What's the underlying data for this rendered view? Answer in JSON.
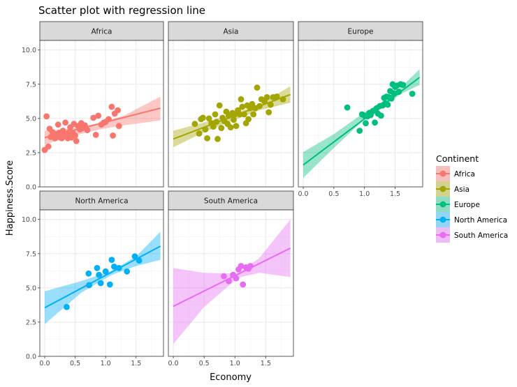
{
  "chart_data": {
    "type": "scatter",
    "title": "Scatter plot with regression line",
    "xlabel": "Economy",
    "ylabel": "Happiness.Score",
    "xlim": [
      -0.08,
      1.95
    ],
    "ylim": [
      0,
      10.7
    ],
    "x_ticks": [
      0.0,
      0.5,
      1.0,
      1.5
    ],
    "x_tick_labels": [
      "0.0",
      "0.5",
      "1.0",
      "1.5"
    ],
    "y_ticks": [
      0.0,
      2.5,
      5.0,
      7.5,
      10.0
    ],
    "y_tick_labels": [
      "0.0",
      "2.5",
      "5.0",
      "7.5",
      "10.0"
    ],
    "grid": true,
    "legend": {
      "title": "Continent",
      "position": "right",
      "entries": [
        "Africa",
        "Asia",
        "Europe",
        "North America",
        "South America"
      ]
    },
    "facets": [
      {
        "name": "Africa",
        "color": "#F8766D",
        "regression": {
          "x": [
            0.0,
            1.9
          ],
          "y": [
            3.6,
            5.75
          ]
        },
        "band": {
          "x": [
            0.0,
            0.4,
            0.9,
            1.3,
            1.9
          ],
          "lower": [
            3.1,
            3.65,
            4.2,
            4.5,
            4.85
          ],
          "upper": [
            4.1,
            4.25,
            4.65,
            5.2,
            6.6
          ]
        },
        "points": [
          {
            "x": 0.0,
            "y": 2.7
          },
          {
            "x": 0.03,
            "y": 5.15
          },
          {
            "x": 0.06,
            "y": 2.95
          },
          {
            "x": 0.08,
            "y": 4.25
          },
          {
            "x": 0.1,
            "y": 3.65
          },
          {
            "x": 0.13,
            "y": 4.0
          },
          {
            "x": 0.17,
            "y": 3.55
          },
          {
            "x": 0.2,
            "y": 3.85
          },
          {
            "x": 0.22,
            "y": 4.55
          },
          {
            "x": 0.24,
            "y": 3.95
          },
          {
            "x": 0.26,
            "y": 3.6
          },
          {
            "x": 0.28,
            "y": 3.55
          },
          {
            "x": 0.3,
            "y": 4.1
          },
          {
            "x": 0.32,
            "y": 3.7
          },
          {
            "x": 0.34,
            "y": 4.7
          },
          {
            "x": 0.36,
            "y": 3.8
          },
          {
            "x": 0.38,
            "y": 3.55
          },
          {
            "x": 0.4,
            "y": 4.0
          },
          {
            "x": 0.42,
            "y": 4.35
          },
          {
            "x": 0.44,
            "y": 3.6
          },
          {
            "x": 0.46,
            "y": 3.95
          },
          {
            "x": 0.48,
            "y": 4.6
          },
          {
            "x": 0.5,
            "y": 3.75
          },
          {
            "x": 0.52,
            "y": 3.35
          },
          {
            "x": 0.55,
            "y": 4.45
          },
          {
            "x": 0.58,
            "y": 4.2
          },
          {
            "x": 0.6,
            "y": 4.65
          },
          {
            "x": 0.62,
            "y": 4.3
          },
          {
            "x": 0.66,
            "y": 4.5
          },
          {
            "x": 0.7,
            "y": 4.15
          },
          {
            "x": 0.8,
            "y": 5.05
          },
          {
            "x": 0.84,
            "y": 3.8
          },
          {
            "x": 0.88,
            "y": 5.2
          },
          {
            "x": 0.93,
            "y": 4.55
          },
          {
            "x": 0.97,
            "y": 4.7
          },
          {
            "x": 1.0,
            "y": 4.75
          },
          {
            "x": 1.05,
            "y": 4.95
          },
          {
            "x": 1.1,
            "y": 5.85
          },
          {
            "x": 1.12,
            "y": 3.75
          },
          {
            "x": 1.15,
            "y": 5.35
          },
          {
            "x": 1.2,
            "y": 5.6
          },
          {
            "x": 1.22,
            "y": 4.45
          }
        ]
      },
      {
        "name": "Asia",
        "color": "#A3A500",
        "regression": {
          "x": [
            0.0,
            1.9
          ],
          "y": [
            3.5,
            6.75
          ]
        },
        "band": {
          "x": [
            0.0,
            0.5,
            1.0,
            1.4,
            1.9
          ],
          "lower": [
            2.9,
            4.0,
            4.9,
            5.6,
            6.15
          ],
          "upper": [
            4.1,
            4.7,
            5.35,
            6.05,
            7.35
          ]
        },
        "points": [
          {
            "x": 0.35,
            "y": 4.6
          },
          {
            "x": 0.42,
            "y": 3.9
          },
          {
            "x": 0.45,
            "y": 4.95
          },
          {
            "x": 0.48,
            "y": 5.05
          },
          {
            "x": 0.52,
            "y": 4.2
          },
          {
            "x": 0.55,
            "y": 3.55
          },
          {
            "x": 0.58,
            "y": 5.0
          },
          {
            "x": 0.62,
            "y": 4.65
          },
          {
            "x": 0.65,
            "y": 4.4
          },
          {
            "x": 0.68,
            "y": 5.3
          },
          {
            "x": 0.7,
            "y": 4.75
          },
          {
            "x": 0.72,
            "y": 3.5
          },
          {
            "x": 0.75,
            "y": 5.95
          },
          {
            "x": 0.78,
            "y": 4.3
          },
          {
            "x": 0.8,
            "y": 5.05
          },
          {
            "x": 0.83,
            "y": 4.8
          },
          {
            "x": 0.86,
            "y": 5.5
          },
          {
            "x": 0.88,
            "y": 4.6
          },
          {
            "x": 0.9,
            "y": 5.2
          },
          {
            "x": 0.93,
            "y": 4.35
          },
          {
            "x": 0.96,
            "y": 5.4
          },
          {
            "x": 0.98,
            "y": 4.9
          },
          {
            "x": 1.0,
            "y": 5.3
          },
          {
            "x": 1.02,
            "y": 4.45
          },
          {
            "x": 1.05,
            "y": 5.6
          },
          {
            "x": 1.08,
            "y": 5.3
          },
          {
            "x": 1.1,
            "y": 6.4
          },
          {
            "x": 1.12,
            "y": 5.85
          },
          {
            "x": 1.15,
            "y": 5.3
          },
          {
            "x": 1.18,
            "y": 4.65
          },
          {
            "x": 1.2,
            "y": 5.95
          },
          {
            "x": 1.22,
            "y": 4.95
          },
          {
            "x": 1.25,
            "y": 5.75
          },
          {
            "x": 1.28,
            "y": 6.05
          },
          {
            "x": 1.3,
            "y": 5.3
          },
          {
            "x": 1.33,
            "y": 5.75
          },
          {
            "x": 1.36,
            "y": 7.25
          },
          {
            "x": 1.4,
            "y": 5.9
          },
          {
            "x": 1.43,
            "y": 6.4
          },
          {
            "x": 1.48,
            "y": 6.25
          },
          {
            "x": 1.52,
            "y": 6.55
          },
          {
            "x": 1.55,
            "y": 5.45
          },
          {
            "x": 1.58,
            "y": 6.0
          },
          {
            "x": 1.62,
            "y": 6.55
          },
          {
            "x": 1.68,
            "y": 6.6
          },
          {
            "x": 1.78,
            "y": 6.4
          }
        ]
      },
      {
        "name": "Europe",
        "color": "#00BF7D",
        "regression": {
          "x": [
            0.0,
            1.9
          ],
          "y": [
            1.6,
            8.0
          ]
        },
        "band": {
          "x": [
            0.0,
            0.5,
            1.0,
            1.3,
            1.6,
            1.9
          ],
          "lower": [
            0.65,
            2.85,
            4.95,
            5.85,
            6.8,
            7.45
          ],
          "upper": [
            2.55,
            3.85,
            5.45,
            6.25,
            7.3,
            8.6
          ]
        },
        "points": [
          {
            "x": 0.72,
            "y": 5.8
          },
          {
            "x": 0.92,
            "y": 4.1
          },
          {
            "x": 0.96,
            "y": 5.3
          },
          {
            "x": 1.0,
            "y": 5.2
          },
          {
            "x": 1.02,
            "y": 4.65
          },
          {
            "x": 1.05,
            "y": 5.15
          },
          {
            "x": 1.08,
            "y": 5.4
          },
          {
            "x": 1.1,
            "y": 5.25
          },
          {
            "x": 1.14,
            "y": 5.55
          },
          {
            "x": 1.17,
            "y": 4.7
          },
          {
            "x": 1.2,
            "y": 5.75
          },
          {
            "x": 1.22,
            "y": 5.35
          },
          {
            "x": 1.25,
            "y": 5.9
          },
          {
            "x": 1.27,
            "y": 5.2
          },
          {
            "x": 1.3,
            "y": 5.95
          },
          {
            "x": 1.32,
            "y": 6.5
          },
          {
            "x": 1.34,
            "y": 6.1
          },
          {
            "x": 1.36,
            "y": 6.6
          },
          {
            "x": 1.38,
            "y": 6.0
          },
          {
            "x": 1.4,
            "y": 6.55
          },
          {
            "x": 1.42,
            "y": 7.0
          },
          {
            "x": 1.44,
            "y": 6.45
          },
          {
            "x": 1.46,
            "y": 7.5
          },
          {
            "x": 1.48,
            "y": 6.85
          },
          {
            "x": 1.5,
            "y": 7.3
          },
          {
            "x": 1.53,
            "y": 7.4
          },
          {
            "x": 1.56,
            "y": 6.95
          },
          {
            "x": 1.59,
            "y": 7.5
          },
          {
            "x": 1.63,
            "y": 7.45
          },
          {
            "x": 1.78,
            "y": 6.8
          }
        ]
      },
      {
        "name": "North America",
        "color": "#00B0F6",
        "regression": {
          "x": [
            0.0,
            1.9
          ],
          "y": [
            3.55,
            8.05
          ]
        },
        "band": {
          "x": [
            0.0,
            0.6,
            1.1,
            1.5,
            1.9
          ],
          "lower": [
            2.35,
            4.65,
            5.95,
            6.6,
            7.05
          ],
          "upper": [
            4.75,
            5.5,
            6.25,
            7.3,
            9.1
          ]
        },
        "points": [
          {
            "x": 0.36,
            "y": 3.6
          },
          {
            "x": 0.72,
            "y": 6.05
          },
          {
            "x": 0.73,
            "y": 5.2
          },
          {
            "x": 0.86,
            "y": 6.45
          },
          {
            "x": 0.89,
            "y": 5.95
          },
          {
            "x": 0.92,
            "y": 5.35
          },
          {
            "x": 1.0,
            "y": 6.2
          },
          {
            "x": 1.07,
            "y": 5.25
          },
          {
            "x": 1.1,
            "y": 7.05
          },
          {
            "x": 1.14,
            "y": 6.55
          },
          {
            "x": 1.22,
            "y": 6.45
          },
          {
            "x": 1.35,
            "y": 6.2
          },
          {
            "x": 1.48,
            "y": 7.3
          },
          {
            "x": 1.55,
            "y": 7.0
          }
        ]
      },
      {
        "name": "South America",
        "color": "#E76BF3",
        "regression": {
          "x": [
            0.0,
            1.9
          ],
          "y": [
            3.65,
            7.9
          ]
        },
        "band": {
          "x": [
            0.0,
            0.5,
            1.0,
            1.1,
            1.4,
            1.9
          ],
          "lower": [
            0.9,
            3.6,
            5.55,
            5.8,
            6.1,
            5.8
          ],
          "upper": [
            6.45,
            6.1,
            6.05,
            6.2,
            7.2,
            10.0
          ]
        },
        "points": [
          {
            "x": 0.82,
            "y": 5.85
          },
          {
            "x": 0.9,
            "y": 5.5
          },
          {
            "x": 0.97,
            "y": 5.95
          },
          {
            "x": 1.02,
            "y": 5.7
          },
          {
            "x": 1.06,
            "y": 6.35
          },
          {
            "x": 1.1,
            "y": 6.6
          },
          {
            "x": 1.13,
            "y": 5.25
          },
          {
            "x": 1.18,
            "y": 6.5
          },
          {
            "x": 1.22,
            "y": 6.4
          },
          {
            "x": 1.25,
            "y": 6.6
          }
        ]
      }
    ]
  }
}
